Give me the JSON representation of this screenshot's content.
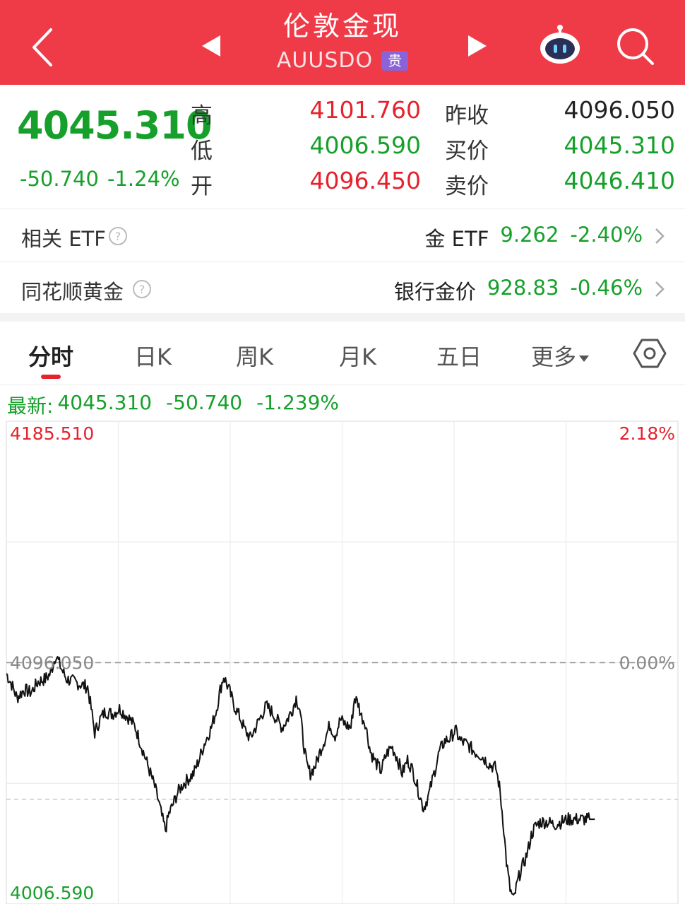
{
  "header": {
    "title": "伦敦金现",
    "symbol": "AUUSDO",
    "tag": "贵",
    "background": "#ef3b47"
  },
  "quote": {
    "price": "4045.310",
    "change": "-50.740",
    "change_percent": "-1.24%",
    "high_label": "高",
    "high": "4101.760",
    "low_label": "低",
    "low": "4006.590",
    "open_label": "开",
    "open": "4096.450",
    "prev_close_label": "昨收",
    "prev_close": "4096.050",
    "bid_label": "买价",
    "bid": "4045.310",
    "ask_label": "卖价",
    "ask": "4046.410"
  },
  "related_etf": {
    "label": "相关 ETF",
    "name": "金 ETF",
    "value": "9.262",
    "change": "-2.40%"
  },
  "ths_gold": {
    "label": "同花顺黄金",
    "name": "银行金价",
    "value": "928.83",
    "change": "-0.46%"
  },
  "tabs": [
    {
      "label": "分时"
    },
    {
      "label": "日K"
    },
    {
      "label": "周K"
    },
    {
      "label": "月K"
    },
    {
      "label": "五日"
    },
    {
      "label": "更多"
    }
  ],
  "latest": {
    "label": "最新:",
    "price": "4045.310",
    "change": "-50.740",
    "change_percent": "-1.239%"
  },
  "chart_data": {
    "type": "line",
    "y_top_label": "4185.510",
    "y_mid_label": "4096.050",
    "y_bottom_label": "4006.590",
    "pct_top_label": "2.18%",
    "pct_mid_label": "0.00%",
    "ylim": [
      4006.59,
      4185.51
    ],
    "reference": 4096.05,
    "avg_line": 4045.4,
    "grid": true,
    "line_color": "#111111",
    "points": [
      [
        0,
        4092
      ],
      [
        3,
        4088
      ],
      [
        6,
        4083
      ],
      [
        10,
        4086
      ],
      [
        14,
        4085
      ],
      [
        18,
        4089
      ],
      [
        22,
        4090
      ],
      [
        25,
        4092
      ],
      [
        28,
        4099
      ],
      [
        31,
        4094
      ],
      [
        34,
        4090
      ],
      [
        38,
        4089
      ],
      [
        42,
        4088
      ],
      [
        46,
        4087
      ],
      [
        48,
        4079
      ],
      [
        50,
        4070
      ],
      [
        53,
        4075
      ],
      [
        56,
        4078
      ],
      [
        60,
        4077
      ],
      [
        64,
        4079
      ],
      [
        67,
        4077
      ],
      [
        70,
        4075
      ],
      [
        73,
        4072
      ],
      [
        76,
        4066
      ],
      [
        80,
        4058
      ],
      [
        84,
        4050
      ],
      [
        86,
        4045
      ],
      [
        88,
        4039
      ],
      [
        90,
        4034
      ],
      [
        92,
        4040
      ],
      [
        94,
        4043
      ],
      [
        97,
        4048
      ],
      [
        100,
        4051
      ],
      [
        103,
        4053
      ],
      [
        106,
        4055
      ],
      [
        109,
        4060
      ],
      [
        112,
        4066
      ],
      [
        116,
        4072
      ],
      [
        119,
        4079
      ],
      [
        121,
        4086
      ],
      [
        123,
        4091
      ],
      [
        126,
        4086
      ],
      [
        129,
        4080
      ],
      [
        132,
        4076
      ],
      [
        135,
        4071
      ],
      [
        138,
        4068
      ],
      [
        141,
        4072
      ],
      [
        144,
        4076
      ],
      [
        147,
        4080
      ],
      [
        150,
        4078
      ],
      [
        153,
        4075
      ],
      [
        156,
        4072
      ],
      [
        159,
        4075
      ],
      [
        162,
        4079
      ],
      [
        164,
        4083
      ],
      [
        166,
        4079
      ],
      [
        168,
        4067
      ],
      [
        170,
        4058
      ],
      [
        172,
        4055
      ],
      [
        175,
        4058
      ],
      [
        178,
        4064
      ],
      [
        181,
        4069
      ],
      [
        183,
        4073
      ],
      [
        186,
        4069
      ],
      [
        189,
        4075
      ],
      [
        192,
        4073
      ],
      [
        195,
        4072
      ],
      [
        197,
        4083
      ],
      [
        199,
        4081
      ],
      [
        201,
        4076
      ],
      [
        203,
        4074
      ],
      [
        206,
        4063
      ],
      [
        209,
        4059
      ],
      [
        212,
        4056
      ],
      [
        215,
        4062
      ],
      [
        218,
        4065
      ],
      [
        221,
        4061
      ],
      [
        224,
        4055
      ],
      [
        227,
        4060
      ],
      [
        230,
        4056
      ],
      [
        233,
        4049
      ],
      [
        236,
        4042
      ],
      [
        239,
        4047
      ],
      [
        242,
        4055
      ],
      [
        245,
        4063
      ],
      [
        248,
        4067
      ],
      [
        251,
        4068
      ],
      [
        254,
        4071
      ],
      [
        257,
        4067
      ],
      [
        260,
        4066
      ],
      [
        262,
        4065
      ],
      [
        265,
        4063
      ],
      [
        268,
        4062
      ],
      [
        271,
        4060
      ],
      [
        274,
        4058
      ],
      [
        277,
        4057
      ],
      [
        279,
        4050
      ],
      [
        281,
        4038
      ],
      [
        283,
        4022
      ],
      [
        285,
        4012
      ],
      [
        287,
        4008
      ],
      [
        289,
        4014
      ],
      [
        291,
        4019
      ],
      [
        293,
        4022
      ],
      [
        295,
        4026
      ],
      [
        297,
        4032
      ],
      [
        299,
        4035
      ],
      [
        302,
        4037
      ],
      [
        306,
        4037
      ],
      [
        310,
        4036
      ],
      [
        314,
        4037
      ],
      [
        318,
        4038
      ],
      [
        322,
        4038
      ],
      [
        326,
        4038
      ],
      [
        330,
        4038
      ],
      [
        333,
        4038
      ]
    ]
  }
}
